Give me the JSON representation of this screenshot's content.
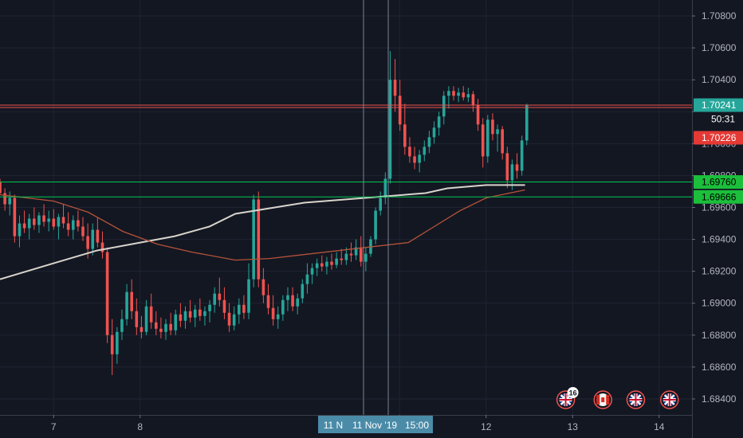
{
  "chart_data": {
    "type": "candlestick",
    "price_axis_ticks": [
      "1.70800",
      "1.70600",
      "1.70400",
      "1.70200",
      "1.70000",
      "1.69800",
      "1.69600",
      "1.69400",
      "1.69200",
      "1.69000",
      "1.68800",
      "1.68600",
      "1.68400"
    ],
    "time_axis_ticks": [
      {
        "label": "7",
        "day": 7
      },
      {
        "label": "8",
        "day": 8
      },
      {
        "label": "11",
        "day": 11
      },
      {
        "label": "12",
        "day": 12
      },
      {
        "label": "13",
        "day": 13
      },
      {
        "label": "14",
        "day": 14
      }
    ],
    "x_range_days": [
      6.38,
      14.38
    ],
    "y_range": [
      1.683,
      1.709
    ],
    "crosshair_labels": [
      "11 N",
      "11 Nov '19",
      "15:00"
    ],
    "horizontal_levels": [
      {
        "price": 1.70241,
        "label": "1.70241",
        "line_color": "#ef5350",
        "bg": "#26a69a",
        "text_color": "#ffffff"
      },
      {
        "price": 1.70226,
        "label": "1.70226",
        "line_color": "#ef5350",
        "bg": "#e53935",
        "text_color": "#ffffff"
      },
      {
        "price": 1.6976,
        "label": "1.69760",
        "line_color": "#00c853",
        "bg": "#1bbf3b",
        "text_color": "#000000"
      },
      {
        "price": 1.69666,
        "label": "1.69666",
        "line_color": "#00c853",
        "bg": "#1bbf3b",
        "text_color": "#000000"
      }
    ],
    "countdown": "50:31",
    "candles": [
      [
        1.6976,
        1.6978,
        1.6968,
        1.6969
      ],
      [
        1.6969,
        1.6972,
        1.6958,
        1.6962
      ],
      [
        1.6962,
        1.697,
        1.6955,
        1.6966
      ],
      [
        1.6966,
        1.6968,
        1.6938,
        1.6942
      ],
      [
        1.6942,
        1.6955,
        1.6935,
        1.695
      ],
      [
        1.695,
        1.6958,
        1.6944,
        1.6947
      ],
      [
        1.6947,
        1.6956,
        1.694,
        1.6953
      ],
      [
        1.6953,
        1.696,
        1.6946,
        1.6949
      ],
      [
        1.6949,
        1.6957,
        1.6944,
        1.6955
      ],
      [
        1.6955,
        1.6962,
        1.6948,
        1.6951
      ],
      [
        1.6951,
        1.6958,
        1.6945,
        1.6953
      ],
      [
        1.6953,
        1.6959,
        1.6946,
        1.6948
      ],
      [
        1.6948,
        1.6956,
        1.694,
        1.6954
      ],
      [
        1.6954,
        1.6962,
        1.6947,
        1.695
      ],
      [
        1.695,
        1.6957,
        1.6942,
        1.6946
      ],
      [
        1.6946,
        1.6955,
        1.694,
        1.6952
      ],
      [
        1.6952,
        1.6958,
        1.6945,
        1.6948
      ],
      [
        1.6948,
        1.6954,
        1.6939,
        1.6942
      ],
      [
        1.6942,
        1.695,
        1.6928,
        1.6934
      ],
      [
        1.6934,
        1.695,
        1.693,
        1.6946
      ],
      [
        1.6946,
        1.6954,
        1.6935,
        1.6938
      ],
      [
        1.6938,
        1.6945,
        1.6928,
        1.6932
      ],
      [
        1.6932,
        1.6935,
        1.6875,
        1.688
      ],
      [
        1.688,
        1.689,
        1.6855,
        1.6868
      ],
      [
        1.6868,
        1.6885,
        1.6862,
        1.6882
      ],
      [
        1.6882,
        1.6896,
        1.6877,
        1.689
      ],
      [
        1.689,
        1.6912,
        1.6886,
        1.6907
      ],
      [
        1.6907,
        1.6915,
        1.689,
        1.6895
      ],
      [
        1.6895,
        1.6903,
        1.688,
        1.6885
      ],
      [
        1.6885,
        1.6892,
        1.6878,
        1.6882
      ],
      [
        1.6882,
        1.6902,
        1.688,
        1.6898
      ],
      [
        1.6898,
        1.6906,
        1.6884,
        1.6888
      ],
      [
        1.6888,
        1.6895,
        1.688,
        1.6884
      ],
      [
        1.6884,
        1.6891,
        1.6878,
        1.6882
      ],
      [
        1.6882,
        1.689,
        1.6877,
        1.6887
      ],
      [
        1.6887,
        1.6894,
        1.688,
        1.6883
      ],
      [
        1.6883,
        1.6896,
        1.688,
        1.6893
      ],
      [
        1.6893,
        1.69,
        1.6885,
        1.6889
      ],
      [
        1.6889,
        1.6898,
        1.6884,
        1.6895
      ],
      [
        1.6895,
        1.6902,
        1.6888,
        1.6891
      ],
      [
        1.6891,
        1.6899,
        1.6885,
        1.6896
      ],
      [
        1.6896,
        1.6903,
        1.6889,
        1.6892
      ],
      [
        1.6892,
        1.6898,
        1.6886,
        1.6895
      ],
      [
        1.6895,
        1.6902,
        1.6888,
        1.6899
      ],
      [
        1.6899,
        1.691,
        1.6894,
        1.6906
      ],
      [
        1.6906,
        1.6916,
        1.6898,
        1.6902
      ],
      [
        1.6902,
        1.691,
        1.689,
        1.6894
      ],
      [
        1.6894,
        1.69,
        1.6882,
        1.6886
      ],
      [
        1.6886,
        1.6898,
        1.6883,
        1.6893
      ],
      [
        1.6893,
        1.6903,
        1.6887,
        1.6899
      ],
      [
        1.6899,
        1.6905,
        1.689,
        1.6894
      ],
      [
        1.6894,
        1.6925,
        1.689,
        1.6915
      ],
      [
        1.6915,
        1.6968,
        1.691,
        1.6965
      ],
      [
        1.6965,
        1.697,
        1.691,
        1.6915
      ],
      [
        1.6915,
        1.6922,
        1.69,
        1.6905
      ],
      [
        1.6905,
        1.6912,
        1.6893,
        1.6897
      ],
      [
        1.6897,
        1.6905,
        1.6886,
        1.689
      ],
      [
        1.689,
        1.6898,
        1.6884,
        1.6893
      ],
      [
        1.6893,
        1.6905,
        1.6889,
        1.6902
      ],
      [
        1.6902,
        1.691,
        1.6895,
        1.6905
      ],
      [
        1.6905,
        1.691,
        1.6895,
        1.6898
      ],
      [
        1.6898,
        1.6906,
        1.6893,
        1.6903
      ],
      [
        1.6903,
        1.6915,
        1.69,
        1.6912
      ],
      [
        1.6912,
        1.6925,
        1.6906,
        1.6918
      ],
      [
        1.6918,
        1.6925,
        1.6912,
        1.6922
      ],
      [
        1.6922,
        1.6928,
        1.6917,
        1.6925
      ],
      [
        1.6925,
        1.693,
        1.692,
        1.6923
      ],
      [
        1.6923,
        1.6929,
        1.6918,
        1.6926
      ],
      [
        1.6926,
        1.6931,
        1.6921,
        1.6924
      ],
      [
        1.6924,
        1.6932,
        1.6922,
        1.6928
      ],
      [
        1.6928,
        1.6934,
        1.6924,
        1.6927
      ],
      [
        1.6927,
        1.6935,
        1.6924,
        1.6931
      ],
      [
        1.6931,
        1.6938,
        1.6926,
        1.693
      ],
      [
        1.693,
        1.694,
        1.6927,
        1.6935
      ],
      [
        1.6935,
        1.6942,
        1.6923,
        1.6926
      ],
      [
        1.6926,
        1.6935,
        1.692,
        1.6931
      ],
      [
        1.6931,
        1.6942,
        1.6929,
        1.694
      ],
      [
        1.694,
        1.696,
        1.6937,
        1.6958
      ],
      [
        1.6958,
        1.697,
        1.6955,
        1.6966
      ],
      [
        1.6966,
        1.6982,
        1.6962,
        1.6978
      ],
      [
        1.6978,
        1.7058,
        1.6975,
        1.704
      ],
      [
        1.704,
        1.7053,
        1.702,
        1.703
      ],
      [
        1.703,
        1.704,
        1.7008,
        1.7012
      ],
      [
        1.7012,
        1.7025,
        1.6993,
        1.6998
      ],
      [
        1.6998,
        1.7004,
        1.6988,
        1.6992
      ],
      [
        1.6992,
        1.6998,
        1.6984,
        1.6988
      ],
      [
        1.6988,
        1.6996,
        1.6982,
        1.6993
      ],
      [
        1.6993,
        1.7002,
        1.6989,
        1.6998
      ],
      [
        1.6998,
        1.7008,
        1.6994,
        1.7004
      ],
      [
        1.7004,
        1.7014,
        1.7,
        1.701
      ],
      [
        1.701,
        1.702,
        1.7005,
        1.7017
      ],
      [
        1.7017,
        1.7033,
        1.7012,
        1.703
      ],
      [
        1.703,
        1.7036,
        1.7022,
        1.7033
      ],
      [
        1.7033,
        1.7036,
        1.7027,
        1.703
      ],
      [
        1.703,
        1.7035,
        1.7026,
        1.7032
      ],
      [
        1.7032,
        1.7036,
        1.7027,
        1.7029
      ],
      [
        1.7029,
        1.7035,
        1.7026,
        1.7031
      ],
      [
        1.7031,
        1.7033,
        1.702,
        1.7024
      ],
      [
        1.7024,
        1.7028,
        1.7008,
        1.7012
      ],
      [
        1.7012,
        1.7016,
        1.6985,
        1.6992
      ],
      [
        1.6992,
        1.7018,
        1.6988,
        1.7015
      ],
      [
        1.7015,
        1.7019,
        1.7002,
        1.7006
      ],
      [
        1.7006,
        1.7012,
        1.6995,
        1.7009
      ],
      [
        1.7009,
        1.7011,
        1.699,
        1.6994
      ],
      [
        1.6994,
        1.6998,
        1.6972,
        1.6977
      ],
      [
        1.6977,
        1.699,
        1.6971,
        1.6987
      ],
      [
        1.6987,
        1.6994,
        1.6978,
        1.6983
      ],
      [
        1.6983,
        1.7005,
        1.698,
        1.7002
      ],
      [
        1.7002,
        1.7025,
        1.6999,
        1.7024
      ]
    ],
    "moving_averages": [
      {
        "color": "#d9d4cc",
        "width": 2,
        "points": [
          [
            6.38,
            1.6915
          ],
          [
            7.0,
            1.6925
          ],
          [
            7.5,
            1.6933
          ],
          [
            8.0,
            1.6938
          ],
          [
            8.4,
            1.6942
          ],
          [
            8.8,
            1.6948
          ],
          [
            9.1,
            1.6956
          ],
          [
            9.9,
            1.6963
          ],
          [
            11.3,
            1.6969
          ],
          [
            11.55,
            1.6972
          ],
          [
            12.0,
            1.6974
          ],
          [
            12.45,
            1.6974
          ]
        ]
      },
      {
        "color": "#b5533a",
        "width": 1.3,
        "points": [
          [
            6.38,
            1.6968
          ],
          [
            7.0,
            1.6964
          ],
          [
            7.4,
            1.6957
          ],
          [
            7.8,
            1.6945
          ],
          [
            8.2,
            1.6937
          ],
          [
            8.6,
            1.6932
          ],
          [
            9.1,
            1.6927
          ],
          [
            9.5,
            1.6928
          ],
          [
            11.1,
            1.6938
          ],
          [
            11.4,
            1.6948
          ],
          [
            11.7,
            1.6958
          ],
          [
            12.0,
            1.6966
          ],
          [
            12.45,
            1.6971
          ]
        ]
      }
    ],
    "event_badges": [
      {
        "day": 12.92,
        "name": "uk-flag-icon",
        "count": "16"
      },
      {
        "day": 13.35,
        "name": "canada-flag-icon",
        "count": ""
      },
      {
        "day": 13.73,
        "name": "uk-flag-icon",
        "count": ""
      },
      {
        "day": 14.12,
        "name": "uk-flag-icon",
        "count": ""
      }
    ]
  }
}
